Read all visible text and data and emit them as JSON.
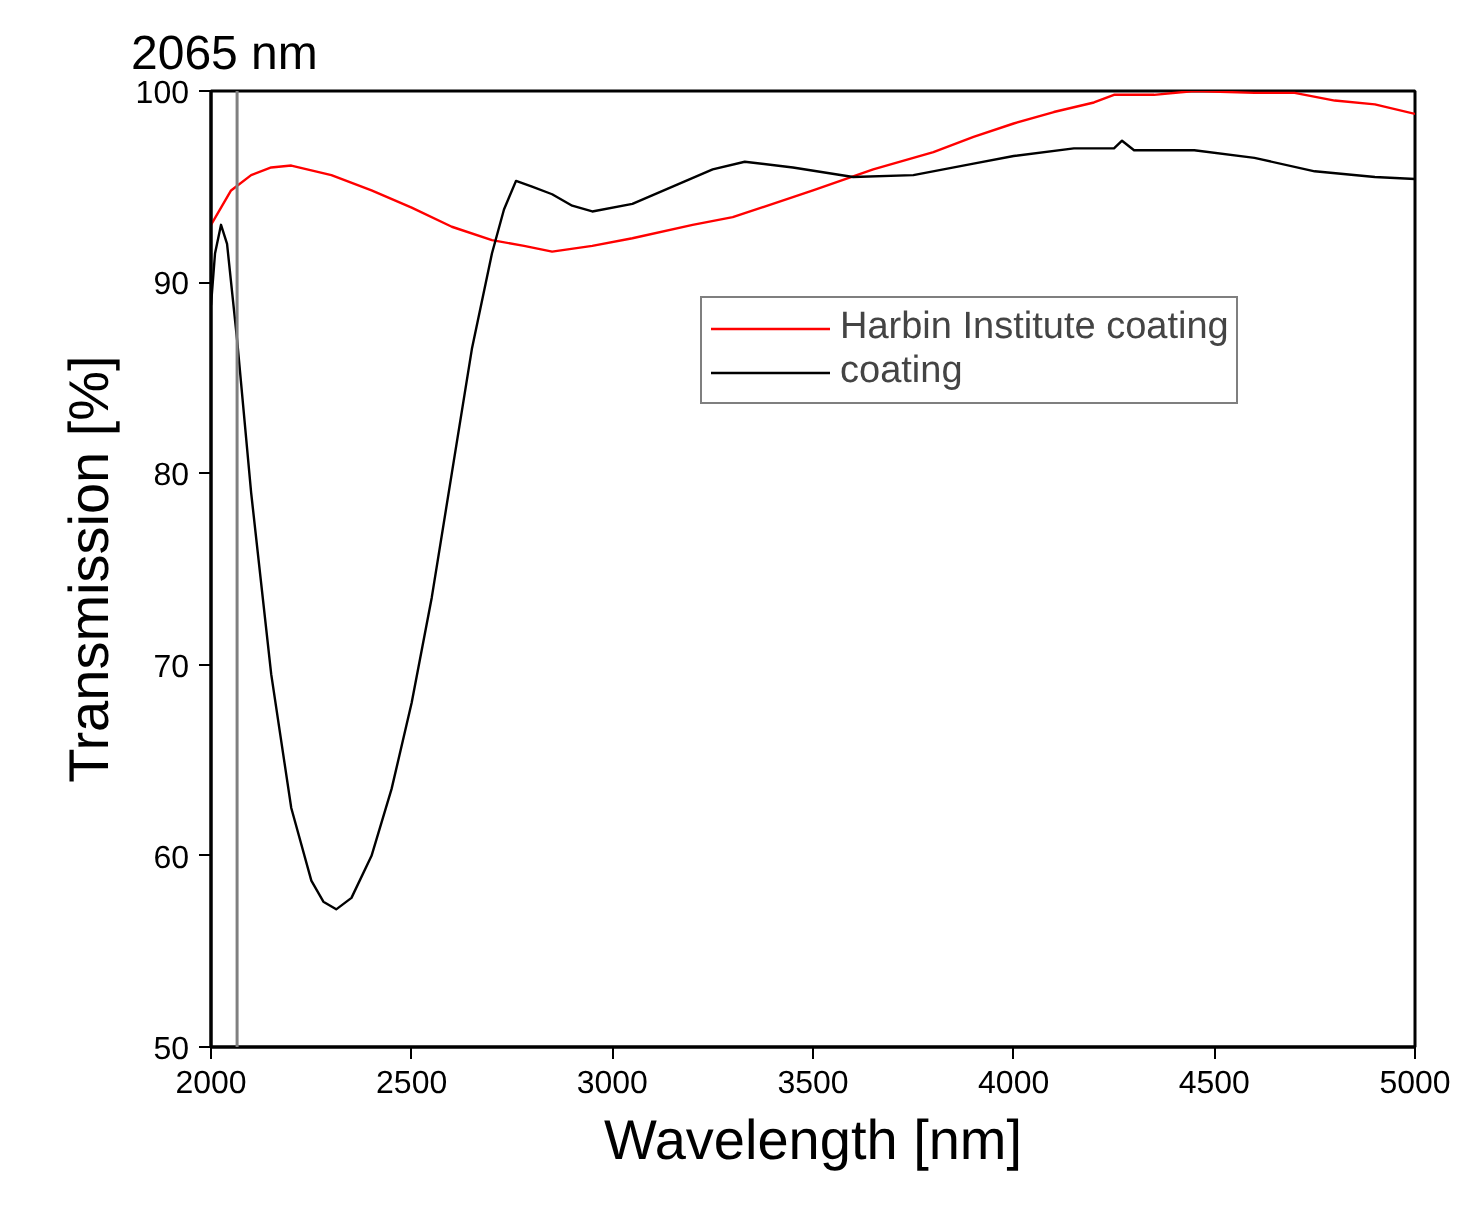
{
  "chart_data": {
    "type": "line",
    "xlabel": "Wavelength [nm]",
    "ylabel": "Transmission [%]",
    "xlim": [
      2000,
      5000
    ],
    "xticks": [
      2000,
      2500,
      3000,
      3500,
      4000,
      4500,
      5000
    ],
    "ylim": [
      50,
      100
    ],
    "yticks": [
      50,
      60,
      70,
      80,
      90,
      100
    ],
    "grid": false,
    "legend": "top right",
    "marker": "none",
    "line_style": "solid",
    "ref_lines": [
      {
        "axis": "x",
        "value": 2065,
        "label": "2065 nm",
        "color": "#808080"
      }
    ],
    "series": [
      {
        "name": "Harbin Institute coating",
        "color": "#ff0000",
        "x": [
          2000,
          2050,
          2100,
          2150,
          2200,
          2300,
          2400,
          2500,
          2600,
          2700,
          2780,
          2850,
          2950,
          3050,
          3200,
          3300,
          3500,
          3650,
          3800,
          3900,
          4000,
          4100,
          4200,
          4250,
          4350,
          4450,
          4600,
          4700,
          4800,
          4900,
          5000
        ],
        "values": [
          93.0,
          94.8,
          95.6,
          96.0,
          96.1,
          95.6,
          94.8,
          93.9,
          92.9,
          92.2,
          91.9,
          91.6,
          91.9,
          92.3,
          93.0,
          93.4,
          94.8,
          95.9,
          96.8,
          97.6,
          98.3,
          98.9,
          99.4,
          99.8,
          99.8,
          100.0,
          99.9,
          99.9,
          99.5,
          99.3,
          98.8
        ]
      },
      {
        "name": "coating",
        "color": "#000000",
        "x": [
          2000,
          2010,
          2025,
          2040,
          2065,
          2100,
          2150,
          2200,
          2250,
          2280,
          2312,
          2350,
          2400,
          2450,
          2500,
          2550,
          2600,
          2650,
          2700,
          2730,
          2760,
          2800,
          2850,
          2900,
          2950,
          3050,
          3150,
          3250,
          3330,
          3450,
          3600,
          3750,
          3900,
          4000,
          4150,
          4250,
          4270,
          4300,
          4450,
          4600,
          4750,
          4900,
          5000
        ],
        "values": [
          88.8,
          91.5,
          93.0,
          92.0,
          87.0,
          79.0,
          69.5,
          62.5,
          58.7,
          57.6,
          57.2,
          57.8,
          60.0,
          63.5,
          68.0,
          73.5,
          80.0,
          86.5,
          91.5,
          93.8,
          95.3,
          95.0,
          94.6,
          94.0,
          93.7,
          94.1,
          95.0,
          95.9,
          96.3,
          96.0,
          95.5,
          95.6,
          96.2,
          96.6,
          97.0,
          97.0,
          97.4,
          96.9,
          96.9,
          96.5,
          95.8,
          95.5,
          95.4
        ]
      }
    ]
  }
}
